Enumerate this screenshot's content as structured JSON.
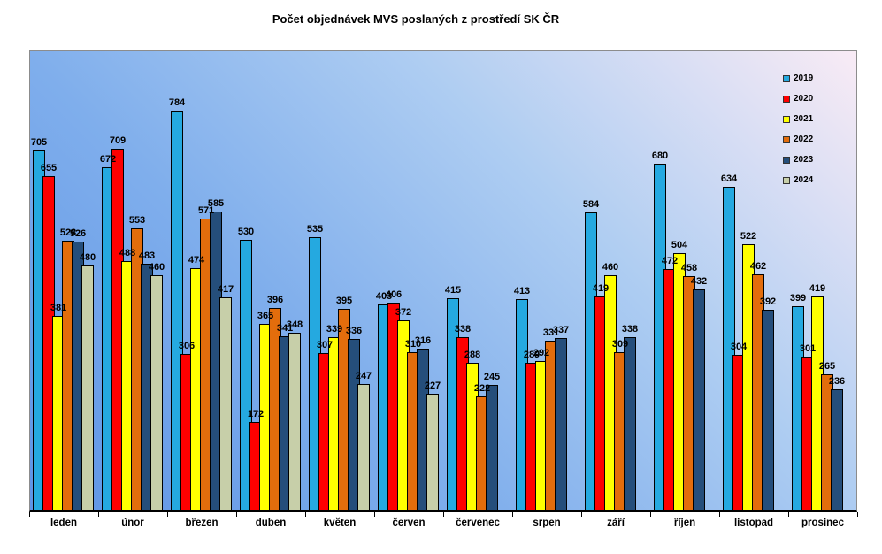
{
  "title": "Počet objednávek MVS poslaných z prostředí SK ČR",
  "chart_data": {
    "type": "bar",
    "title": "Počet objednávek MVS poslaných z prostředí SK ČR",
    "categories": [
      "leden",
      "únor",
      "březen",
      "duben",
      "květen",
      "červen",
      "červenec",
      "srpen",
      "září",
      "říjen",
      "listopad",
      "prosinec"
    ],
    "series": [
      {
        "name": "2019",
        "color": "#25a9e0",
        "values": [
          705,
          672,
          784,
          530,
          535,
          403,
          415,
          413,
          584,
          680,
          634,
          399
        ]
      },
      {
        "name": "2020",
        "color": "#fe0000",
        "values": [
          655,
          709,
          306,
          172,
          307,
          406,
          338,
          289,
          419,
          472,
          304,
          301
        ]
      },
      {
        "name": "2021",
        "color": "#ffff00",
        "values": [
          381,
          488,
          474,
          365,
          339,
          372,
          288,
          292,
          460,
          504,
          522,
          419
        ]
      },
      {
        "name": "2022",
        "color": "#e36d0c",
        "values": [
          528,
          553,
          571,
          396,
          395,
          310,
          222,
          331,
          309,
          458,
          462,
          265
        ]
      },
      {
        "name": "2023",
        "color": "#254e7b",
        "values": [
          526,
          483,
          585,
          341,
          336,
          316,
          245,
          337,
          338,
          432,
          392,
          236
        ]
      },
      {
        "name": "2024",
        "color": "#c7cfa9",
        "values": [
          480,
          460,
          417,
          348,
          247,
          227,
          null,
          null,
          null,
          null,
          null,
          null
        ]
      }
    ],
    "ylim": [
      0,
      900
    ],
    "grid": false,
    "y_axis_visible": false,
    "value_labels": true,
    "legend_position": "top-right",
    "wall_gradient": [
      "#5e94e6",
      "#f9ebf5"
    ]
  }
}
